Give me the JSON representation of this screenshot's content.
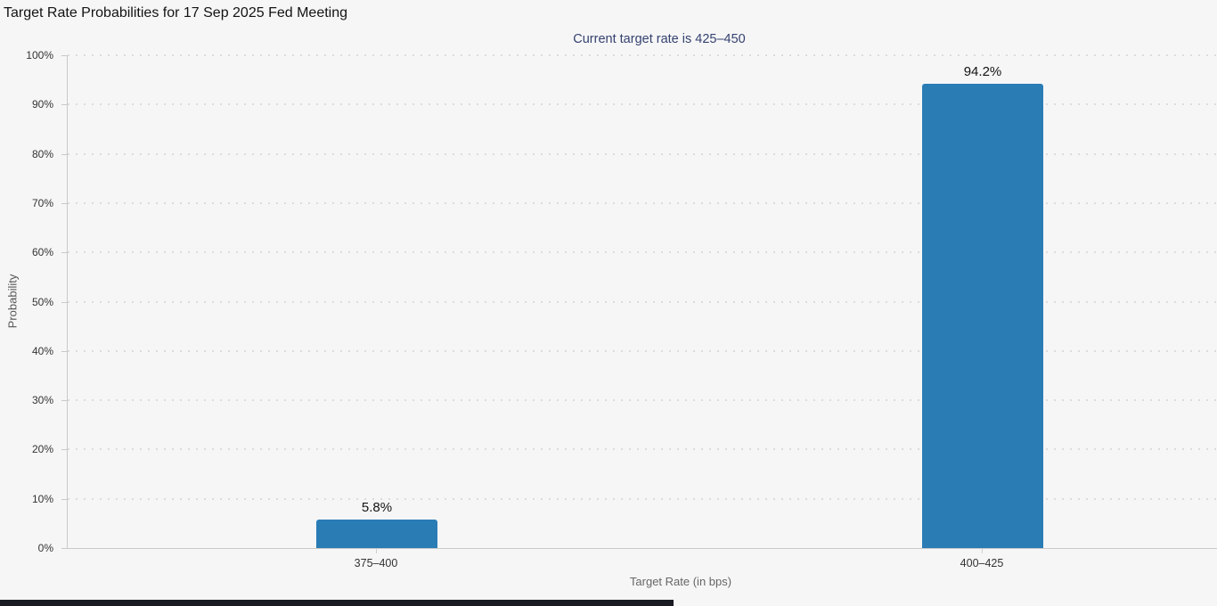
{
  "chart_data": {
    "type": "bar",
    "title": "Target Rate Probabilities for 17 Sep 2025 Fed Meeting",
    "subtitle": "Current target rate is 425–450",
    "categories": [
      "375–400",
      "400–425"
    ],
    "values": [
      5.8,
      94.2
    ],
    "data_labels": [
      "5.8%",
      "94.2%"
    ],
    "xlabel": "Target Rate (in bps)",
    "ylabel": "Probability",
    "ylim": [
      0,
      100
    ],
    "ytick_step": 10,
    "yticks": [
      "0%",
      "10%",
      "20%",
      "30%",
      "40%",
      "50%",
      "60%",
      "70%",
      "80%",
      "90%",
      "100%"
    ],
    "grid": {
      "horizontal": true,
      "style": "dotted"
    },
    "legend": "none",
    "bar_color": "#2a7cb5"
  },
  "colors": {
    "background": "#f6f6f7",
    "bar": "#2a7cb5",
    "subtitle_text": "#35426f",
    "axis_line": "#c9c9c9",
    "gridline": "#dcdcdc",
    "scrollbar": "#1a1a23"
  }
}
